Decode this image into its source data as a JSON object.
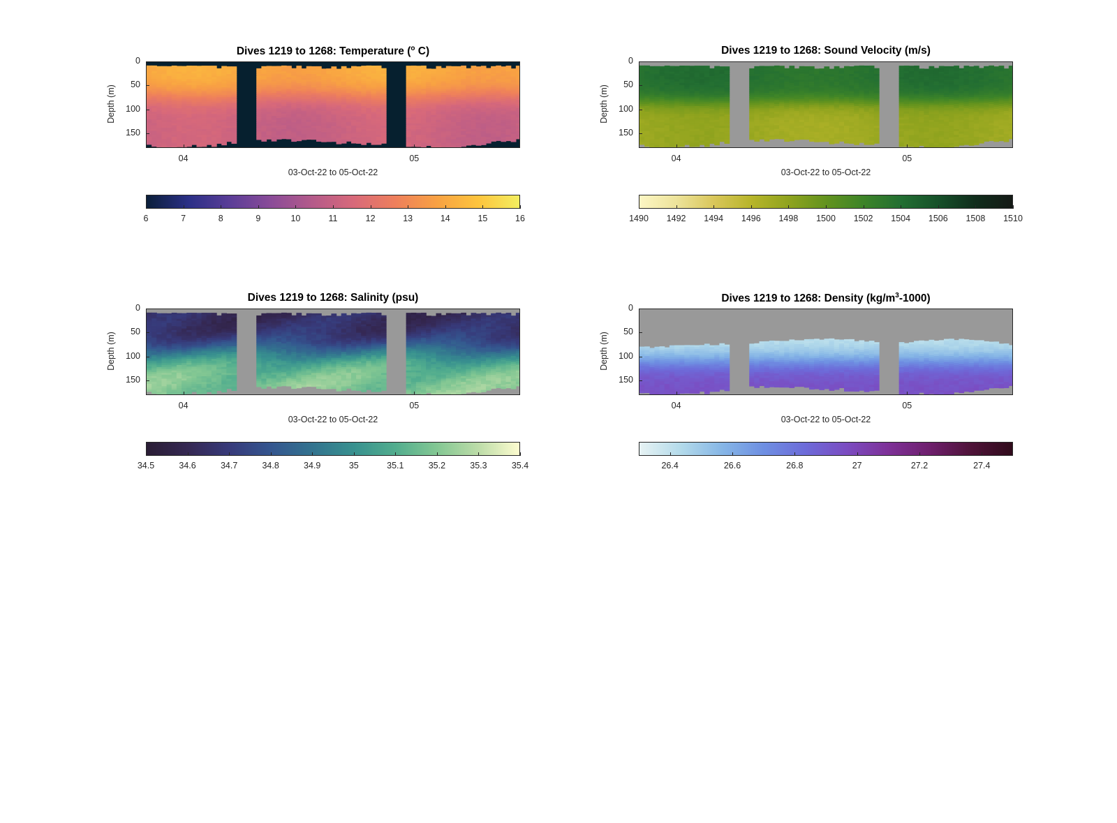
{
  "panels": [
    {
      "id": "temperature",
      "title": "Dives 1219 to 1268: Temperature (",
      "title_sup": "o",
      "title_tail": " C)",
      "ylabel": "Depth (m)",
      "xlabel": "03-Oct-22 to 05-Oct-22",
      "xticks": [
        "04",
        "05"
      ],
      "yticks": [
        "0",
        "50",
        "100",
        "150"
      ],
      "cbar_ticks": [
        "6",
        "7",
        "8",
        "9",
        "10",
        "11",
        "12",
        "13",
        "14",
        "15",
        "16"
      ],
      "cmap": [
        "#0b1f3a",
        "#2a2f86",
        "#5a3d97",
        "#8a4b98",
        "#b45a8a",
        "#d8697a",
        "#ee7f5c",
        "#f8a143",
        "#fdc43d",
        "#f3ee60"
      ],
      "no_data_color": "#06202f",
      "value_range": [
        6,
        16
      ]
    },
    {
      "id": "sound_velocity",
      "title": "Dives 1219 to 1268: Sound Velocity (m/s)",
      "title_sup": "",
      "title_tail": "",
      "ylabel": "Depth (m)",
      "xlabel": "03-Oct-22 to 05-Oct-22",
      "xticks": [
        "04",
        "05"
      ],
      "yticks": [
        "0",
        "50",
        "100",
        "150"
      ],
      "cbar_ticks": [
        "1490",
        "1492",
        "1494",
        "1496",
        "1498",
        "1500",
        "1502",
        "1504",
        "1506",
        "1508",
        "1510"
      ],
      "cmap": [
        "#fcf6c4",
        "#ede39a",
        "#d9c65a",
        "#b7b52a",
        "#8fa31e",
        "#63931e",
        "#3d8428",
        "#236f32",
        "#16512a",
        "#102d1c",
        "#151a16"
      ],
      "no_data_color": "#999999",
      "value_range": [
        1490,
        1510
      ]
    },
    {
      "id": "salinity",
      "title": "Dives 1219 to 1268: Salinity (psu)",
      "title_sup": "",
      "title_tail": "",
      "ylabel": "Depth (m)",
      "xlabel": "03-Oct-22 to 05-Oct-22",
      "xticks": [
        "04",
        "05"
      ],
      "yticks": [
        "0",
        "50",
        "100",
        "150"
      ],
      "cbar_ticks": [
        "34.5",
        "34.6",
        "34.7",
        "34.8",
        "34.9",
        "35",
        "35.1",
        "35.2",
        "35.3",
        "35.4"
      ],
      "cmap": [
        "#2a1d35",
        "#352853",
        "#373a7a",
        "#34568f",
        "#33738f",
        "#38918f",
        "#52ad8e",
        "#83c793",
        "#bcdca8",
        "#fdfccf"
      ],
      "no_data_color": "#999999",
      "value_range": [
        34.5,
        35.4
      ]
    },
    {
      "id": "density",
      "title": "Dives 1219 to 1268: Density (kg/m",
      "title_sup": "3",
      "title_tail": "-1000)",
      "ylabel": "Depth (m)",
      "xlabel": "03-Oct-22 to 05-Oct-22",
      "xticks": [
        "04",
        "05"
      ],
      "yticks": [
        "0",
        "50",
        "100",
        "150"
      ],
      "cbar_ticks": [
        "26.4",
        "26.6",
        "26.8",
        "27",
        "27.2",
        "27.4"
      ],
      "cmap": [
        "#e7f3f4",
        "#b3daea",
        "#86b6e6",
        "#6e8fe2",
        "#6d6bd9",
        "#7b4cc1",
        "#7e3198",
        "#6e1f6d",
        "#4f1339",
        "#300b1b"
      ],
      "no_data_color": "#999999",
      "value_range": [
        26.3,
        27.5
      ]
    }
  ],
  "chart_data": [
    {
      "type": "heatmap",
      "title": "Dives 1219 to 1268: Temperature (° C)",
      "xlabel": "03-Oct-22 to 05-Oct-22",
      "ylabel": "Depth (m)",
      "x_tick_labels": [
        "04",
        "05"
      ],
      "y_tick_labels": [
        "0",
        "50",
        "100",
        "150"
      ],
      "ylim": [
        0,
        180
      ],
      "y_reversed": true,
      "colorbar": {
        "range": [
          6,
          16
        ],
        "ticks": [
          6,
          7,
          8,
          9,
          10,
          11,
          12,
          13,
          14,
          15,
          16
        ],
        "location": "bottom"
      },
      "profile": {
        "depth": [
          10,
          40,
          70,
          100,
          130,
          160
        ],
        "value": [
          14.0,
          13.6,
          12.4,
          11.6,
          11.2,
          11.0
        ]
      }
    },
    {
      "type": "heatmap",
      "title": "Dives 1219 to 1268: Sound Velocity (m/s)",
      "xlabel": "03-Oct-22 to 05-Oct-22",
      "ylabel": "Depth (m)",
      "x_tick_labels": [
        "04",
        "05"
      ],
      "y_tick_labels": [
        "0",
        "50",
        "100",
        "150"
      ],
      "ylim": [
        0,
        180
      ],
      "y_reversed": true,
      "colorbar": {
        "range": [
          1490,
          1510
        ],
        "ticks": [
          1490,
          1492,
          1494,
          1496,
          1498,
          1500,
          1502,
          1504,
          1506,
          1508,
          1510
        ],
        "location": "bottom"
      },
      "profile": {
        "depth": [
          10,
          40,
          70,
          100,
          130,
          160
        ],
        "value": [
          1503.5,
          1503.0,
          1502.0,
          1499.0,
          1497.5,
          1497.0
        ]
      }
    },
    {
      "type": "heatmap",
      "title": "Dives 1219 to 1268: Salinity (psu)",
      "xlabel": "03-Oct-22 to 05-Oct-22",
      "ylabel": "Depth (m)",
      "x_tick_labels": [
        "04",
        "05"
      ],
      "y_tick_labels": [
        "0",
        "50",
        "100",
        "150"
      ],
      "ylim": [
        0,
        180
      ],
      "y_reversed": true,
      "colorbar": {
        "range": [
          34.5,
          35.4
        ],
        "ticks": [
          34.5,
          34.6,
          34.7,
          34.8,
          34.9,
          35,
          35.1,
          35.2,
          35.3,
          35.4
        ],
        "location": "bottom"
      },
      "profile": {
        "depth": [
          10,
          40,
          70,
          100,
          130,
          160
        ],
        "value": [
          34.62,
          34.68,
          34.85,
          35.05,
          35.15,
          35.2
        ]
      }
    },
    {
      "type": "heatmap",
      "title": "Dives 1219 to 1268: Density (kg/m³-1000)",
      "xlabel": "03-Oct-22 to 05-Oct-22",
      "ylabel": "Depth (m)",
      "x_tick_labels": [
        "04",
        "05"
      ],
      "y_tick_labels": [
        "0",
        "50",
        "100",
        "150"
      ],
      "ylim": [
        0,
        180
      ],
      "y_reversed": true,
      "colorbar": {
        "range": [
          26.3,
          27.5
        ],
        "ticks": [
          26.4,
          26.6,
          26.8,
          27,
          27.2,
          27.4
        ],
        "location": "bottom"
      },
      "profile": {
        "depth": [
          80,
          100,
          130,
          160
        ],
        "value": [
          26.45,
          26.7,
          26.9,
          26.95
        ]
      }
    }
  ]
}
